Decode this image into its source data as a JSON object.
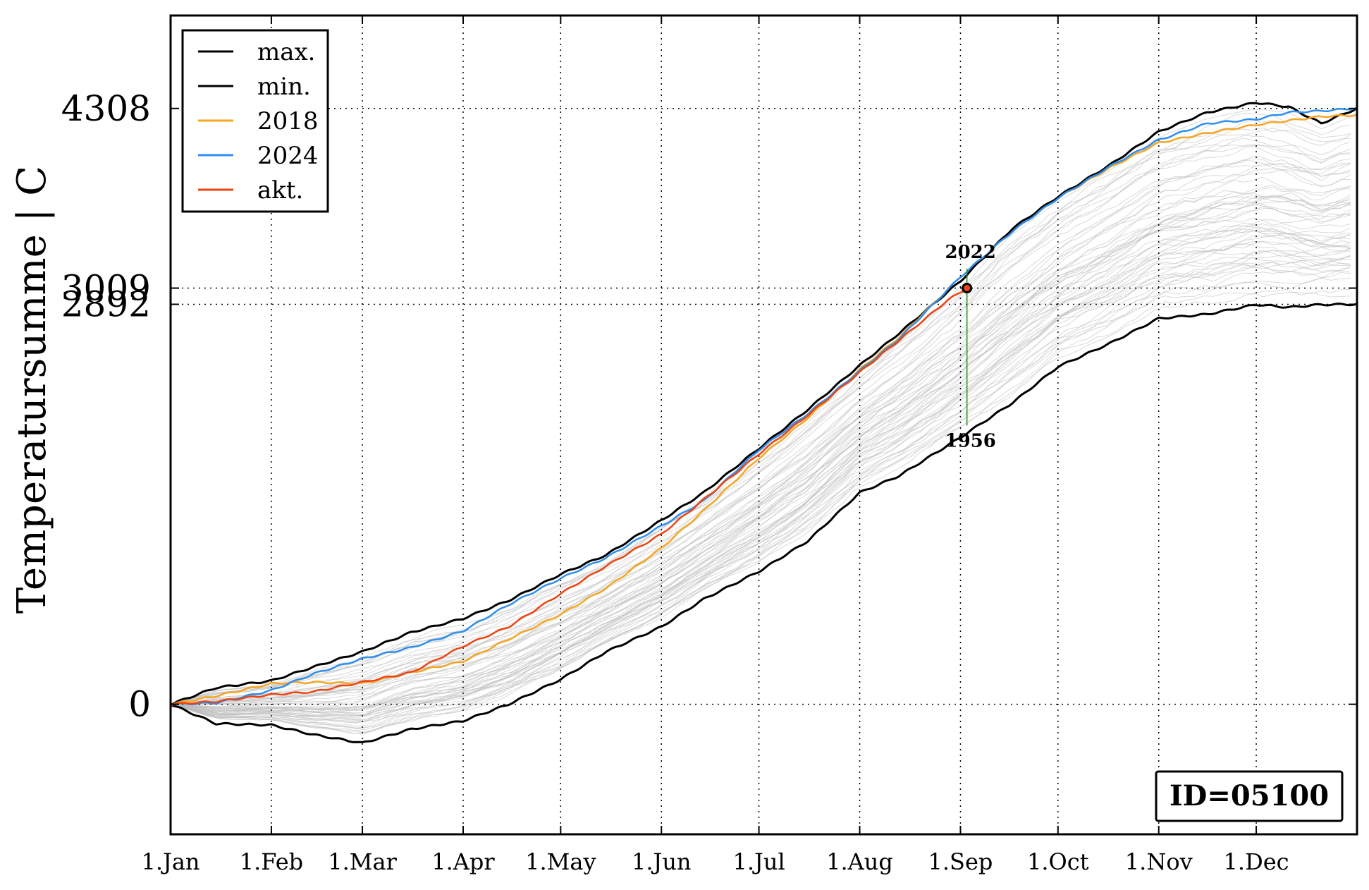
{
  "chart_data": {
    "type": "line",
    "title": "",
    "xlabel": "",
    "ylabel": "Temperatursumme | C",
    "xlim": [
      1,
      366
    ],
    "ylim": [
      -940,
      4980
    ],
    "x_ticks": [
      {
        "day": 1,
        "label": "1.Jan"
      },
      {
        "day": 32,
        "label": "1.Feb"
      },
      {
        "day": 60,
        "label": "1.Mar"
      },
      {
        "day": 91,
        "label": "1.Apr"
      },
      {
        "day": 121,
        "label": "1.May"
      },
      {
        "day": 152,
        "label": "1.Jun"
      },
      {
        "day": 182,
        "label": "1.Jul"
      },
      {
        "day": 213,
        "label": "1.Aug"
      },
      {
        "day": 244,
        "label": "1.Sep"
      },
      {
        "day": 274,
        "label": "1.Oct"
      },
      {
        "day": 305,
        "label": "1.Nov"
      },
      {
        "day": 335,
        "label": "1.Dec"
      }
    ],
    "y_ticks": [
      {
        "value": 0,
        "label": "0"
      },
      {
        "value": 2892,
        "label": "2892"
      },
      {
        "value": 3009,
        "label": "3009"
      },
      {
        "value": 4308,
        "label": "4308"
      }
    ],
    "grid": true,
    "legend_position": "top-left",
    "legend": [
      {
        "label": "max.",
        "color": "#000000"
      },
      {
        "label": "min.",
        "color": "#000000"
      },
      {
        "label": "2018",
        "color": "#f5a623"
      },
      {
        "label": "2024",
        "color": "#2f8ff0"
      },
      {
        "label": "akt.",
        "color": "#ee4411"
      }
    ],
    "series": [
      {
        "name": "max.",
        "color": "#000000",
        "width": 3,
        "x": [
          1,
          15,
          32,
          45,
          60,
          75,
          91,
          105,
          121,
          135,
          152,
          165,
          182,
          197,
          213,
          225,
          244,
          260,
          274,
          290,
          305,
          320,
          335,
          345,
          355,
          366
        ],
        "y": [
          0,
          120,
          170,
          270,
          380,
          520,
          620,
          750,
          940,
          1080,
          1330,
          1530,
          1850,
          2130,
          2450,
          2680,
          3060,
          3440,
          3670,
          3900,
          4140,
          4280,
          4350,
          4320,
          4200,
          4308
        ]
      },
      {
        "name": "min.",
        "color": "#000000",
        "width": 3,
        "x": [
          1,
          15,
          32,
          45,
          60,
          75,
          91,
          105,
          121,
          135,
          152,
          165,
          182,
          197,
          213,
          225,
          244,
          260,
          274,
          290,
          305,
          320,
          335,
          345,
          355,
          366
        ],
        "y": [
          0,
          -140,
          -150,
          -220,
          -280,
          -180,
          -120,
          0,
          180,
          380,
          560,
          760,
          960,
          1180,
          1530,
          1650,
          1930,
          2180,
          2440,
          2610,
          2790,
          2820,
          2890,
          2870,
          2890,
          2892
        ]
      },
      {
        "name": "2018",
        "color": "#f5a623",
        "width": 2.5,
        "x": [
          1,
          15,
          32,
          45,
          60,
          75,
          91,
          105,
          121,
          135,
          152,
          165,
          182,
          197,
          213,
          225,
          244,
          260,
          274,
          290,
          305,
          320,
          335,
          345,
          355,
          366
        ],
        "y": [
          0,
          60,
          150,
          160,
          150,
          230,
          310,
          470,
          650,
          840,
          1130,
          1400,
          1780,
          2070,
          2420,
          2650,
          3090,
          3420,
          3660,
          3880,
          4060,
          4130,
          4190,
          4220,
          4250,
          4260
        ]
      },
      {
        "name": "2024",
        "color": "#2f8ff0",
        "width": 2.5,
        "x": [
          1,
          15,
          32,
          45,
          60,
          75,
          91,
          105,
          121,
          135,
          152,
          165,
          182,
          197,
          213,
          225,
          244,
          260,
          274,
          290,
          305,
          320,
          335,
          345,
          355,
          366
        ],
        "y": [
          0,
          10,
          100,
          220,
          330,
          410,
          530,
          720,
          910,
          1060,
          1290,
          1470,
          1840,
          2100,
          2410,
          2640,
          3090,
          3420,
          3660,
          3890,
          4080,
          4200,
          4230,
          4280,
          4290,
          4310
        ]
      },
      {
        "name": "akt.",
        "color": "#ee4411",
        "width": 2.5,
        "x": [
          1,
          15,
          32,
          45,
          60,
          75,
          91,
          105,
          121,
          135,
          152,
          165,
          182,
          197,
          213,
          225,
          240,
          246
        ],
        "y": [
          0,
          20,
          70,
          90,
          160,
          230,
          420,
          560,
          800,
          1000,
          1230,
          1480,
          1810,
          2090,
          2400,
          2630,
          2920,
          3009
        ]
      }
    ],
    "background_years": {
      "count": 60,
      "color": "#bbbbbb"
    },
    "annotations": [
      {
        "text": "2022",
        "x": 246,
        "y": 3009,
        "position": "above"
      },
      {
        "text": "1956",
        "x": 246,
        "y": 2015,
        "position": "below"
      }
    ],
    "marker": {
      "x": 246,
      "y": 3009,
      "range": [
        2015,
        3150
      ],
      "color": "#ee4411",
      "line_color": "#228b22"
    }
  },
  "id_box": {
    "text": "ID=05100"
  }
}
